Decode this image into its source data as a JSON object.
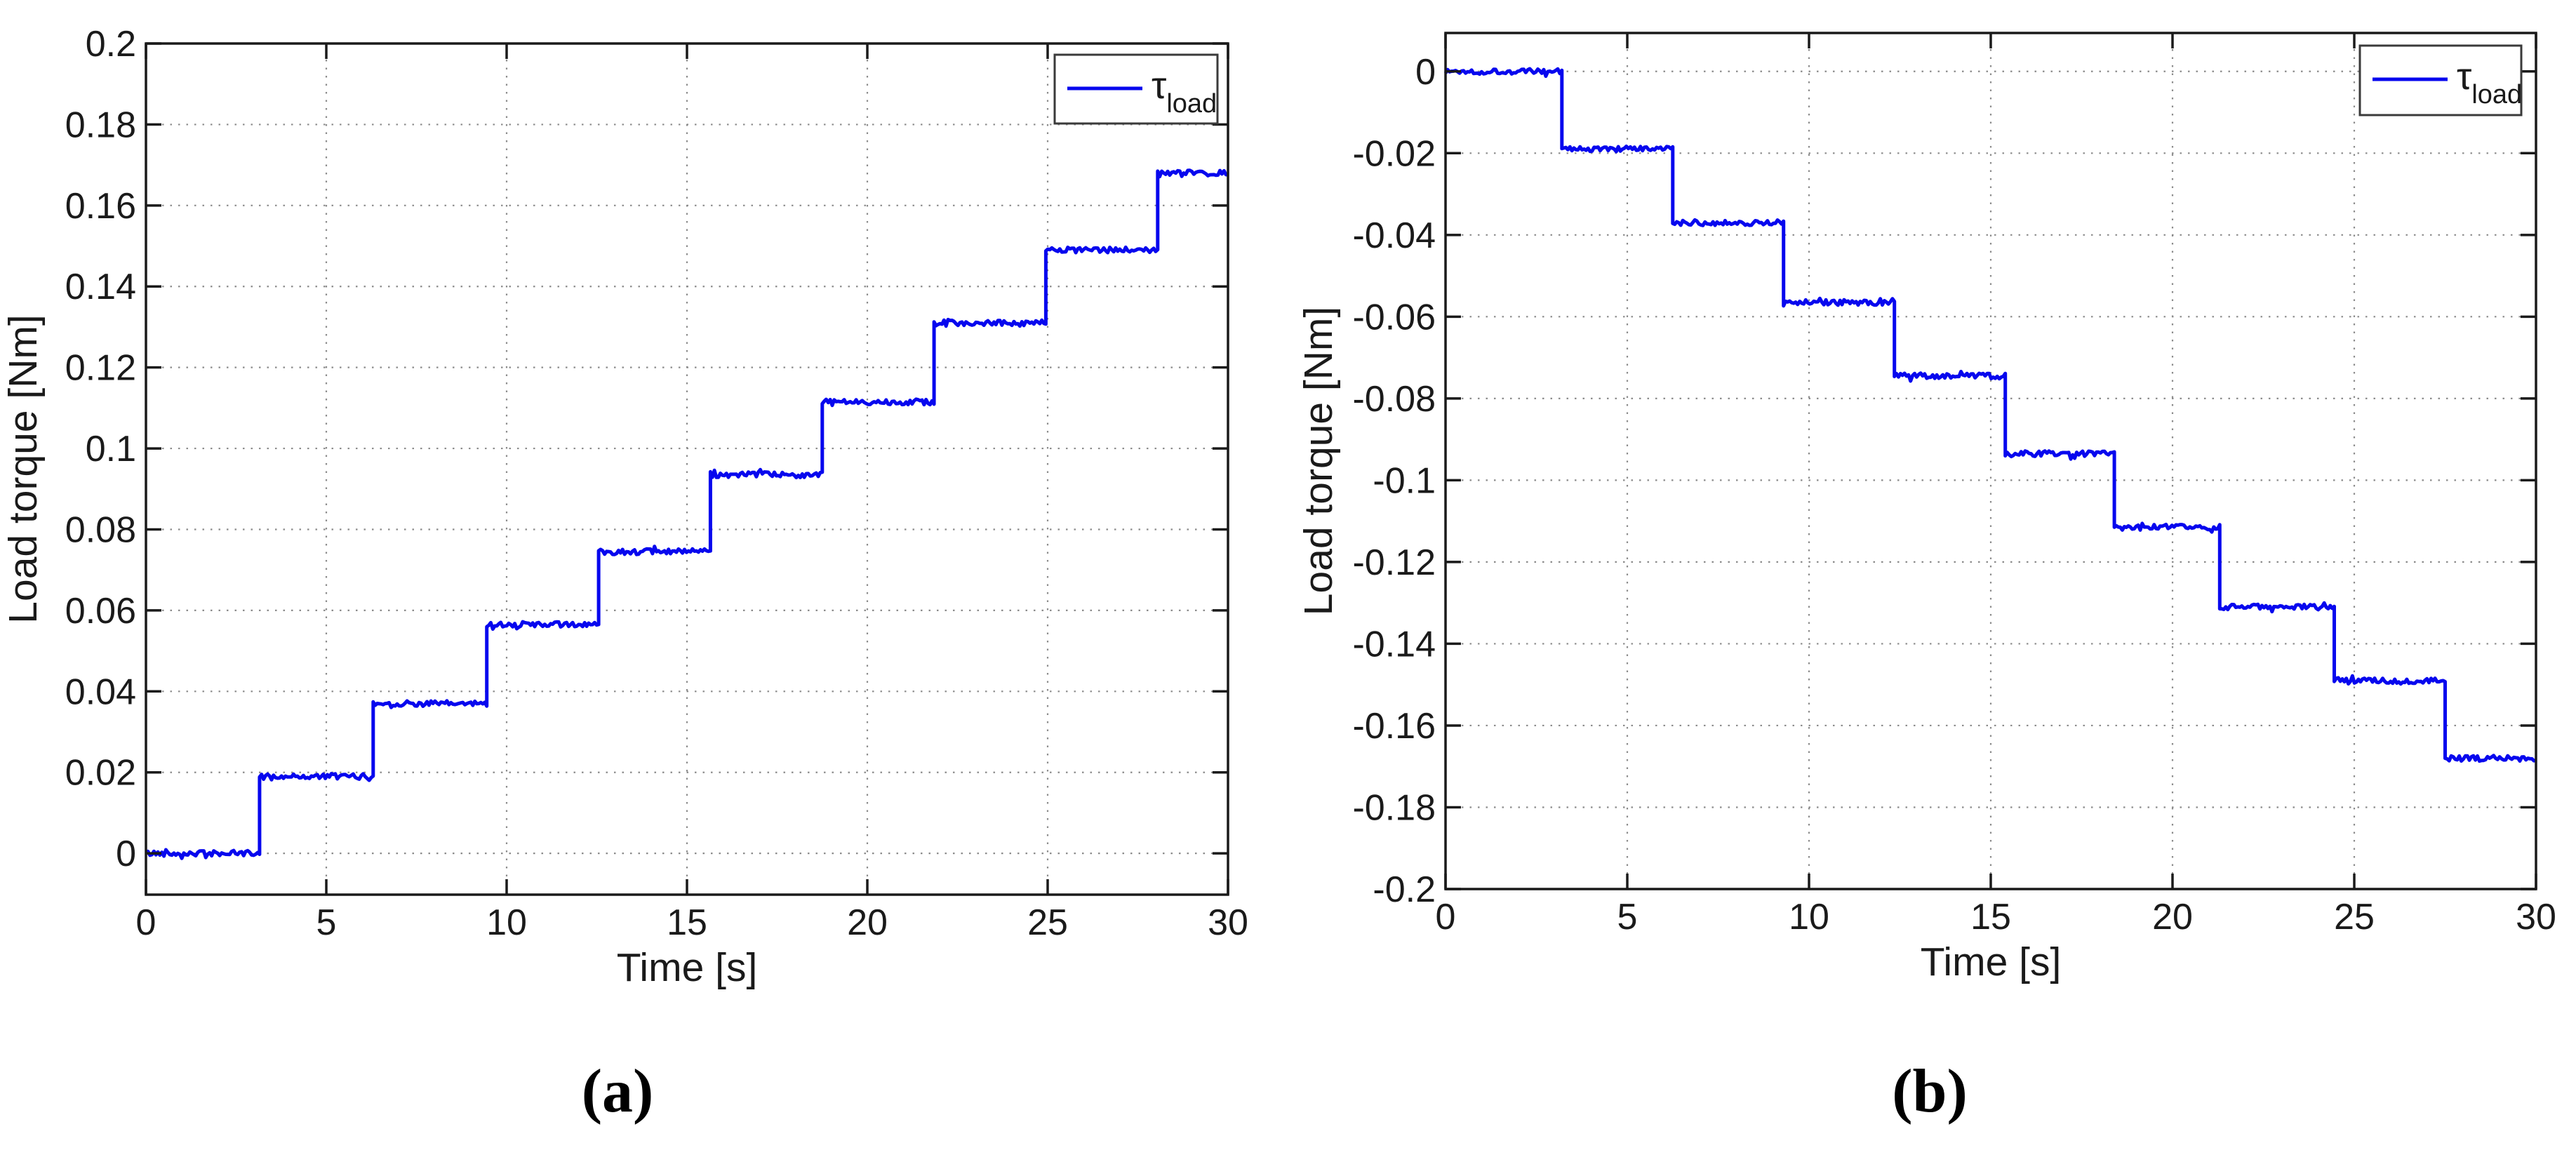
{
  "figure": {
    "background": "#ffffff",
    "caption_a": "(a)",
    "caption_b": "(b)"
  },
  "chart_data": [
    {
      "id": "a",
      "type": "line",
      "subtype": "staircase-step-response",
      "title": "",
      "xlabel": "Time [s]",
      "ylabel": "Load torque [Nm]",
      "legend": {
        "symbol": "line",
        "label_main": "τ",
        "label_sub": "load",
        "position": "top-right"
      },
      "line_color": "#0707ee",
      "axis_color": "#1a1a1a",
      "grid_color": "#8c8c8c",
      "grid": "dotted",
      "xlim": [
        0,
        30
      ],
      "ylim": [
        -0.0102,
        0.2
      ],
      "xticks": [
        0,
        5,
        10,
        15,
        20,
        25,
        30
      ],
      "xtick_labels": [
        "0",
        "5",
        "10",
        "15",
        "20",
        "25",
        "30"
      ],
      "yticks": [
        0,
        0.02,
        0.04,
        0.06,
        0.08,
        0.1,
        0.12,
        0.14,
        0.16,
        0.18,
        0.2
      ],
      "ytick_labels": [
        "0",
        "0.02",
        "0.04",
        "0.06",
        "0.08",
        "0.1",
        "0.12",
        "0.14",
        "0.16",
        "0.18",
        "0.2"
      ],
      "step_transition_times": [
        3.15,
        6.3,
        9.45,
        12.55,
        15.65,
        18.75,
        21.85,
        24.95,
        28.05
      ],
      "step_levels": [
        0,
        0.019,
        0.037,
        0.0565,
        0.0745,
        0.0935,
        0.1115,
        0.131,
        0.149,
        0.168
      ],
      "t_start": 0,
      "t_end": 30,
      "noise_amplitude": 0.0007,
      "noise_seed": 42
    },
    {
      "id": "b",
      "type": "line",
      "subtype": "staircase-step-response",
      "title": "",
      "xlabel": "Time [s]",
      "ylabel": "Load torque [Nm]",
      "legend": {
        "symbol": "line",
        "label_main": "τ",
        "label_sub": "load",
        "position": "top-right"
      },
      "line_color": "#0707ee",
      "axis_color": "#1a1a1a",
      "grid_color": "#8c8c8c",
      "grid": "dotted",
      "xlim": [
        0,
        30
      ],
      "ylim": [
        -0.2,
        0.0094
      ],
      "xticks": [
        0,
        5,
        10,
        15,
        20,
        25,
        30
      ],
      "xtick_labels": [
        "0",
        "5",
        "10",
        "15",
        "20",
        "25",
        "30"
      ],
      "yticks": [
        0,
        -0.02,
        -0.04,
        -0.06,
        -0.08,
        -0.1,
        -0.12,
        -0.14,
        -0.16,
        -0.18,
        -0.2
      ],
      "ytick_labels": [
        "0",
        "-0.02",
        "-0.04",
        "-0.06",
        "-0.08",
        "-0.1",
        "-0.12",
        "-0.14",
        "-0.16",
        "-0.18",
        "-0.2"
      ],
      "step_transition_times": [
        3.2,
        6.25,
        9.3,
        12.35,
        15.4,
        18.4,
        21.3,
        24.45,
        27.5
      ],
      "step_levels": [
        0,
        -0.019,
        -0.037,
        -0.0565,
        -0.0745,
        -0.0935,
        -0.1115,
        -0.131,
        -0.149,
        -0.168
      ],
      "t_start": 0,
      "t_end": 30,
      "noise_amplitude": 0.0007,
      "noise_seed": 1337
    }
  ]
}
